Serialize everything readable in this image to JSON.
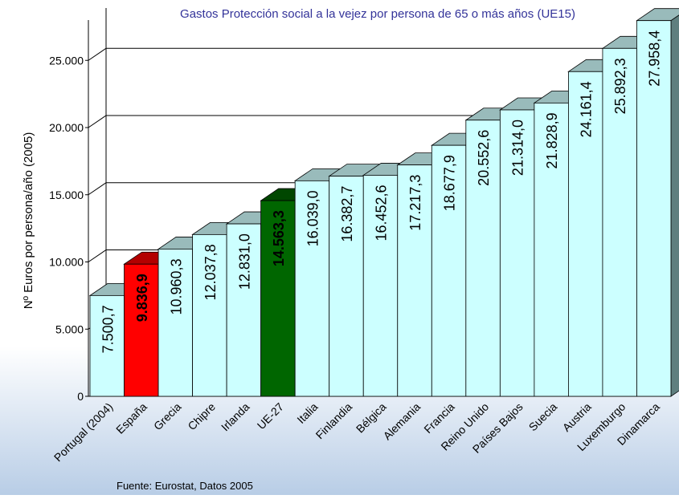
{
  "chart_data": {
    "type": "bar3d",
    "title": "Gastos Protección social a la vejez por persona de 65 o más años (UE15)",
    "y_label": "Nº Euros por persona/año (2005)",
    "source": "Fuente: Eurostat, Datos 2005",
    "categories": [
      "Portugal (2004)",
      "España",
      "Grecia",
      "Chipre",
      "Irlanda",
      "UE-27",
      "Italia",
      "Finlandia",
      "Bélgica",
      "Alemania",
      "Francia",
      "Reino Unido",
      "Países Bajos",
      "Suecia",
      "Austria",
      "Luxemburgo",
      "Dinamarca"
    ],
    "values": [
      7500.7,
      9836.9,
      10960.3,
      12037.8,
      12831.0,
      14563.3,
      16039.0,
      16382.7,
      16452.6,
      17217.3,
      18677.9,
      20552.6,
      21314.0,
      21828.9,
      24161.4,
      25892.3,
      27958.4
    ],
    "value_labels": [
      "7.500,7",
      "9.836,9",
      "10.960,3",
      "12.037,8",
      "12.831,0",
      "14.563,3",
      "16.039,0",
      "16.382,7",
      "16.452,6",
      "17.217,3",
      "18.677,9",
      "20.552,6",
      "21.314,0",
      "21.828,9",
      "24.161,4",
      "25.892,3",
      "27.958,4"
    ],
    "colors": [
      "#ccffff",
      "#ff0000",
      "#ccffff",
      "#ccffff",
      "#ccffff",
      "#006600",
      "#ccffff",
      "#ccffff",
      "#ccffff",
      "#ccffff",
      "#ccffff",
      "#ccffff",
      "#ccffff",
      "#ccffff",
      "#ccffff",
      "#ccffff",
      "#ccffff"
    ],
    "ylim": [
      0,
      28000
    ],
    "yticks": [
      0,
      {
        "value": 5000,
        "label": "5.000"
      },
      {
        "value": 10000,
        "label": "10.000"
      },
      {
        "value": 15000,
        "label": "15.000"
      },
      {
        "value": 20000,
        "label": "20.000"
      },
      {
        "value": 25000,
        "label": "25.000"
      }
    ],
    "grid": true
  }
}
